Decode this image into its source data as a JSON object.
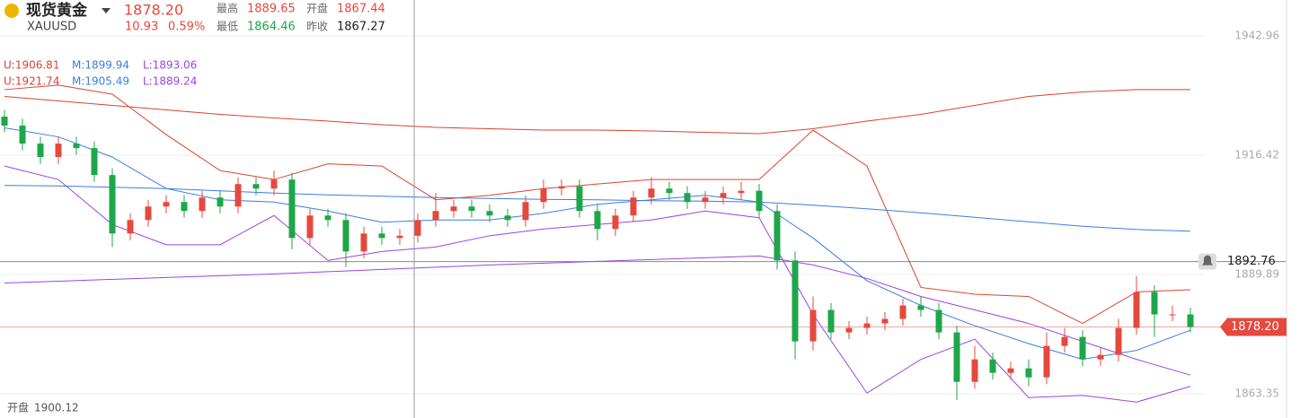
{
  "header": {
    "title": "现货黄金",
    "price": "1878.20",
    "symbol": "XAUUSD",
    "change": "10.93",
    "change_pct": "0.59%",
    "high_label": "最高",
    "high": "1889.65",
    "open_label": "开盘",
    "open": "1867.44",
    "low_label": "最低",
    "low": "1864.46",
    "prev_label": "昨收",
    "prev": "1867.27"
  },
  "indicators": [
    {
      "upper": "U:1906.81",
      "middle": "M:1899.94",
      "lower": "L:1893.06"
    },
    {
      "upper": "U:1921.74",
      "middle": "M:1905.49",
      "lower": "L:1889.24"
    }
  ],
  "footer": {
    "label": "开盘",
    "value": "1900.12"
  },
  "chart_data": {
    "type": "candlestick",
    "up_color": "#e5483d",
    "down_color": "#1fa64a",
    "ylim": [
      1857.96,
      1950.94
    ],
    "yticks": [
      1863.35,
      1889.89,
      1916.42,
      1942.96
    ],
    "open": [
      1925,
      1923,
      1919,
      1916,
      1919,
      1918,
      1912,
      1899,
      1902,
      1905,
      1906,
      1904,
      1907,
      1905,
      1910,
      1909,
      1911,
      1898,
      1903,
      1902,
      1895,
      1899,
      1898,
      1898.5,
      1902,
      1904,
      1905,
      1904,
      1903,
      1902,
      1906,
      1909,
      1909.5,
      1904,
      1900,
      1903,
      1907,
      1909,
      1908,
      1906,
      1907,
      1908,
      1908.5,
      1904,
      1893,
      1875,
      1882,
      1877,
      1878,
      1879,
      1880,
      1883,
      1882,
      1877,
      1866,
      1871,
      1868,
      1869,
      1867,
      1874,
      1876,
      1871,
      1872,
      1878,
      1886,
      1881,
      1881
    ],
    "high": [
      1926.5,
      1924.5,
      1920.5,
      1920.5,
      1920.5,
      1919.5,
      1913.5,
      1903.5,
      1906.5,
      1907.5,
      1907.5,
      1908.5,
      1908.5,
      1911.5,
      1911.5,
      1913,
      1912.5,
      1904.5,
      1904.5,
      1903.5,
      1900.5,
      1900.5,
      1900,
      1903.5,
      1908,
      1906.5,
      1906.5,
      1905.5,
      1904.5,
      1907.5,
      1911,
      1911,
      1911,
      1905.5,
      1904.5,
      1908.5,
      1911.5,
      1910.5,
      1909.5,
      1908.5,
      1909.5,
      1910.5,
      1910,
      1905.5,
      1895,
      1885,
      1883.5,
      1879.5,
      1880.5,
      1881.5,
      1884.5,
      1885,
      1883.5,
      1878.5,
      1874,
      1872.5,
      1870.5,
      1871,
      1877,
      1878,
      1877.5,
      1873.5,
      1880,
      1889.5,
      1887.5,
      1883,
      1882.5
    ],
    "low": [
      1921.5,
      1917.5,
      1914.5,
      1914.5,
      1916.5,
      1910.5,
      1896,
      1897.5,
      1900.5,
      1903.5,
      1902.5,
      1902.5,
      1903.5,
      1903.5,
      1907.5,
      1907.5,
      1895.5,
      1896.5,
      1900.5,
      1891.5,
      1893.5,
      1896.5,
      1896.5,
      1897,
      1900.5,
      1902.5,
      1902.5,
      1901.5,
      1900.5,
      1900.5,
      1904.5,
      1907.5,
      1902.5,
      1897.5,
      1898.5,
      1901.5,
      1905.5,
      1906.5,
      1904.5,
      1904.5,
      1905.5,
      1906.5,
      1902.5,
      1891,
      1871,
      1873,
      1875.5,
      1875.5,
      1876.5,
      1877.5,
      1878.5,
      1880.5,
      1875.5,
      1862,
      1864.5,
      1866.5,
      1866.5,
      1865,
      1865.5,
      1872.5,
      1869.5,
      1869.5,
      1870.5,
      1876.5,
      1876,
      1879.5,
      1877
    ],
    "close": [
      1923,
      1919,
      1916,
      1919,
      1918,
      1912,
      1899,
      1902,
      1905,
      1906,
      1904,
      1907,
      1905,
      1910,
      1909,
      1911,
      1898,
      1903,
      1902,
      1895,
      1899,
      1898,
      1898.5,
      1902,
      1904,
      1905,
      1904,
      1903,
      1902,
      1906,
      1909,
      1909.5,
      1904,
      1900,
      1903,
      1907,
      1909,
      1908,
      1906,
      1907,
      1908,
      1908.5,
      1904,
      1893,
      1875,
      1882,
      1877,
      1878,
      1879,
      1880,
      1883,
      1882,
      1877,
      1866,
      1871,
      1868,
      1869,
      1867,
      1874,
      1876,
      1871,
      1872,
      1878,
      1886,
      1881,
      1881,
      1878.2
    ],
    "bands": {
      "x": [
        0,
        3,
        6,
        9,
        12,
        15,
        18,
        21,
        24,
        27,
        30,
        33,
        36,
        39,
        42,
        45,
        48,
        51,
        54,
        57,
        60,
        63,
        66
      ],
      "series": [
        {
          "color": "#d9442f",
          "values": [
            1931,
            1932,
            1930,
            1921,
            1913,
            1911,
            1914.5,
            1914,
            1906.5,
            1907.5,
            1909,
            1910,
            1911,
            1911,
            1911,
            1922,
            1914,
            1887,
            1885.5,
            1885,
            1879,
            1886,
            1886.5
          ]
        },
        {
          "color": "#3a7de0",
          "values": [
            1922.5,
            1920.5,
            1916,
            1909,
            1906.5,
            1906,
            1904,
            1901.5,
            1902,
            1902,
            1903.5,
            1905.5,
            1906.5,
            1907.5,
            1906,
            1898,
            1888.5,
            1883,
            1878.5,
            1874.5,
            1871,
            1873,
            1877.5
          ]
        },
        {
          "color": "#9b45e0",
          "values": [
            1914,
            1911,
            1901,
            1896.5,
            1896.5,
            1903,
            1893,
            1895,
            1896,
            1898.5,
            1900,
            1901,
            1902,
            1904,
            1902.5,
            1881,
            1863.5,
            1871,
            1875.5,
            1862.5,
            1863,
            1861.5,
            1865
          ]
        },
        {
          "color": "#d9442f",
          "values": [
            1929.5,
            1928.5,
            1927.5,
            1926.5,
            1925.5,
            1924.7,
            1924,
            1923.2,
            1922.6,
            1922.3,
            1922,
            1922,
            1921.8,
            1921.5,
            1921.2,
            1922.3,
            1924,
            1925.5,
            1927.5,
            1929.5,
            1930.5,
            1931,
            1931
          ]
        },
        {
          "color": "#3a7de0",
          "values": [
            1909.7,
            1909.6,
            1909.3,
            1909,
            1908.5,
            1908,
            1907.6,
            1907.3,
            1907,
            1906.8,
            1906.6,
            1906.5,
            1906.3,
            1906.2,
            1906,
            1905.3,
            1904.5,
            1903.6,
            1902.6,
            1901.6,
            1900.6,
            1899.9,
            1899.5
          ]
        },
        {
          "color": "#9b45e0",
          "values": [
            1888,
            1888.4,
            1888.8,
            1889.2,
            1889.6,
            1890,
            1890.5,
            1891,
            1891.5,
            1892,
            1892.4,
            1892.8,
            1893.2,
            1893.6,
            1894,
            1892,
            1889,
            1885,
            1882,
            1879,
            1875,
            1871,
            1867.5
          ]
        }
      ]
    },
    "alert_line": 1892.76,
    "price_line": {
      "value": 1878.2,
      "label": "1878.20"
    }
  }
}
